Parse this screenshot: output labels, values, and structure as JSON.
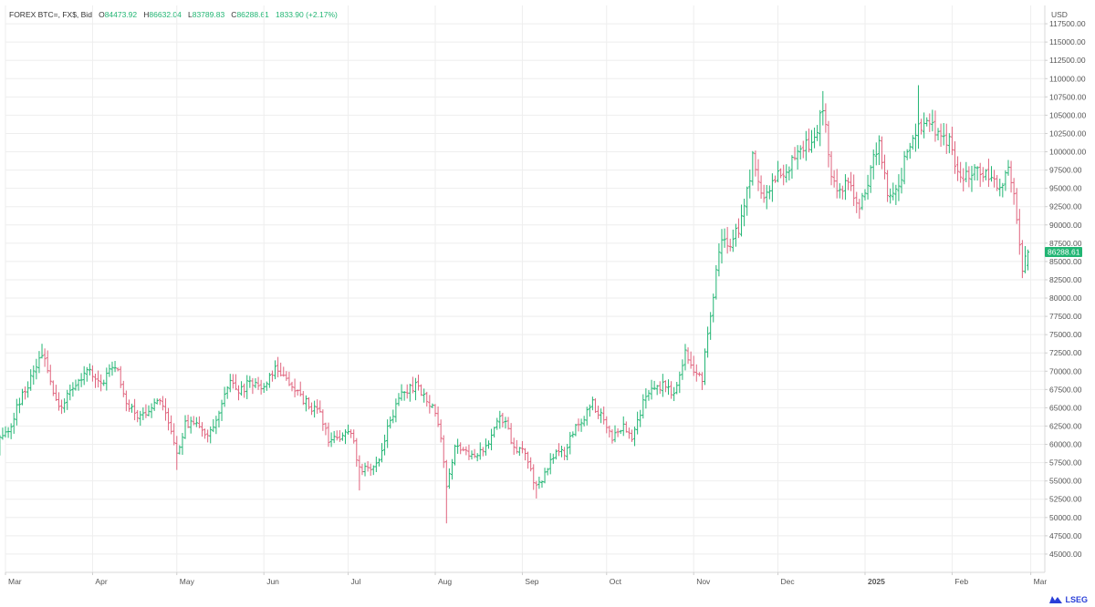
{
  "legend": {
    "symbol": "FOREX BTC=, FX$, Bid",
    "open_label": "O",
    "open": "84473.92",
    "high_label": "H",
    "high": "86632.04",
    "low_label": "L",
    "low": "83789.83",
    "close_label": "C",
    "close": "86288.61",
    "change": "1833.90 (+2.17%)"
  },
  "brand": "LSEG",
  "colors": {
    "up": "#21b573",
    "down": "#e0637d",
    "price_tag": "#21b573",
    "grid": "#eeeeee",
    "axis": "#555555"
  },
  "chart_data": {
    "type": "ohlc",
    "currency_label": "USD",
    "last_price": 86288.61,
    "last_price_label": "86288.61",
    "ylim": [
      42500,
      120000
    ],
    "yticks": [
      45000,
      47500,
      50000,
      52500,
      55000,
      57500,
      60000,
      62500,
      65000,
      67500,
      70000,
      72500,
      75000,
      77500,
      80000,
      82500,
      85000,
      87500,
      90000,
      92500,
      95000,
      97500,
      100000,
      102500,
      105000,
      107500,
      110000,
      112500,
      115000,
      117500
    ],
    "ytick_labels": [
      "45000.00",
      "47500.00",
      "50000.00",
      "52500.00",
      "55000.00",
      "57500.00",
      "60000.00",
      "62500.00",
      "65000.00",
      "67500.00",
      "70000.00",
      "72500.00",
      "75000.00",
      "77500.00",
      "80000.00",
      "82500.00",
      "85000.00",
      "87500.00",
      "90000.00",
      "92500.00",
      "95000.00",
      "97500.00",
      "100000.00",
      "102500.00",
      "105000.00",
      "107500.00",
      "110000.00",
      "112500.00",
      "115000.00",
      "117500.00"
    ],
    "x_range": [
      "2024-03-01",
      "2025-03-06"
    ],
    "xticks": [
      {
        "date": "2024-03-01",
        "label": "Mar",
        "bold": false
      },
      {
        "date": "2024-04-01",
        "label": "Apr",
        "bold": false
      },
      {
        "date": "2024-05-01",
        "label": "May",
        "bold": false
      },
      {
        "date": "2024-06-01",
        "label": "Jun",
        "bold": false
      },
      {
        "date": "2024-07-01",
        "label": "Jul",
        "bold": false
      },
      {
        "date": "2024-08-01",
        "label": "Aug",
        "bold": false
      },
      {
        "date": "2024-09-01",
        "label": "Sep",
        "bold": false
      },
      {
        "date": "2024-10-01",
        "label": "Oct",
        "bold": false
      },
      {
        "date": "2024-11-01",
        "label": "Nov",
        "bold": false
      },
      {
        "date": "2024-12-01",
        "label": "Dec",
        "bold": false
      },
      {
        "date": "2025-01-01",
        "label": "2025",
        "bold": true
      },
      {
        "date": "2025-02-01",
        "label": "Feb",
        "bold": false
      },
      {
        "date": "2025-03-01",
        "label": "Mar",
        "bold": false
      }
    ],
    "start_date": "2024-02-25",
    "end_date": "2025-02-28",
    "anchors": [
      [
        "2024-02-25",
        54000
      ],
      [
        "2024-02-28",
        61000
      ],
      [
        "2024-03-03",
        62500
      ],
      [
        "2024-03-06",
        66000
      ],
      [
        "2024-03-09",
        68000
      ],
      [
        "2024-03-14",
        72500
      ],
      [
        "2024-03-17",
        68500
      ],
      [
        "2024-03-20",
        65000
      ],
      [
        "2024-03-24",
        67000
      ],
      [
        "2024-03-27",
        69000
      ],
      [
        "2024-03-31",
        70000
      ],
      [
        "2024-04-04",
        68000
      ],
      [
        "2024-04-08",
        71000
      ],
      [
        "2024-04-10",
        70000
      ],
      [
        "2024-04-13",
        66000
      ],
      [
        "2024-04-17",
        63500
      ],
      [
        "2024-04-21",
        65000
      ],
      [
        "2024-04-24",
        66500
      ],
      [
        "2024-04-28",
        63500
      ],
      [
        "2024-05-01",
        58500
      ],
      [
        "2024-05-04",
        63000
      ],
      [
        "2024-05-08",
        62500
      ],
      [
        "2024-05-12",
        61000
      ],
      [
        "2024-05-15",
        63500
      ],
      [
        "2024-05-20",
        69000
      ],
      [
        "2024-05-23",
        67000
      ],
      [
        "2024-05-27",
        68500
      ],
      [
        "2024-05-31",
        67500
      ],
      [
        "2024-06-05",
        70500
      ],
      [
        "2024-06-07",
        69500
      ],
      [
        "2024-06-11",
        67500
      ],
      [
        "2024-06-15",
        66000
      ],
      [
        "2024-06-18",
        65000
      ],
      [
        "2024-06-21",
        64000
      ],
      [
        "2024-06-24",
        60500
      ],
      [
        "2024-06-28",
        61000
      ],
      [
        "2024-07-02",
        62000
      ],
      [
        "2024-07-05",
        56500
      ],
      [
        "2024-07-08",
        56500
      ],
      [
        "2024-07-12",
        57500
      ],
      [
        "2024-07-15",
        62000
      ],
      [
        "2024-07-19",
        66500
      ],
      [
        "2024-07-22",
        67500
      ],
      [
        "2024-07-26",
        68000
      ],
      [
        "2024-07-29",
        66000
      ],
      [
        "2024-08-01",
        64500
      ],
      [
        "2024-08-03",
        61000
      ],
      [
        "2024-08-05",
        54000
      ],
      [
        "2024-08-08",
        60000
      ],
      [
        "2024-08-11",
        59000
      ],
      [
        "2024-08-15",
        58000
      ],
      [
        "2024-08-19",
        59500
      ],
      [
        "2024-08-23",
        63500
      ],
      [
        "2024-08-26",
        63000
      ],
      [
        "2024-08-29",
        59500
      ],
      [
        "2024-09-02",
        59000
      ],
      [
        "2024-09-06",
        54000
      ],
      [
        "2024-09-10",
        56500
      ],
      [
        "2024-09-13",
        59500
      ],
      [
        "2024-09-16",
        58500
      ],
      [
        "2024-09-20",
        63000
      ],
      [
        "2024-09-23",
        63500
      ],
      [
        "2024-09-26",
        65500
      ],
      [
        "2024-09-30",
        63500
      ],
      [
        "2024-10-03",
        60500
      ],
      [
        "2024-10-07",
        63000
      ],
      [
        "2024-10-10",
        60500
      ],
      [
        "2024-10-14",
        65500
      ],
      [
        "2024-10-17",
        67500
      ],
      [
        "2024-10-21",
        68000
      ],
      [
        "2024-10-25",
        67000
      ],
      [
        "2024-10-29",
        72500
      ],
      [
        "2024-11-01",
        70000
      ],
      [
        "2024-11-04",
        68500
      ],
      [
        "2024-11-06",
        75500
      ],
      [
        "2024-11-11",
        88500
      ],
      [
        "2024-11-14",
        87000
      ],
      [
        "2024-11-18",
        90500
      ],
      [
        "2024-11-22",
        99000
      ],
      [
        "2024-11-25",
        94000
      ],
      [
        "2024-11-28",
        95500
      ],
      [
        "2024-12-01",
        97000
      ],
      [
        "2024-12-05",
        98000
      ],
      [
        "2024-12-08",
        100000
      ],
      [
        "2024-12-11",
        101000
      ],
      [
        "2024-12-14",
        101500
      ],
      [
        "2024-12-17",
        106500
      ],
      [
        "2024-12-20",
        97000
      ],
      [
        "2024-12-23",
        94500
      ],
      [
        "2024-12-26",
        96000
      ],
      [
        "2024-12-30",
        92500
      ],
      [
        "2025-01-03",
        97500
      ],
      [
        "2025-01-06",
        101500
      ],
      [
        "2025-01-09",
        94000
      ],
      [
        "2025-01-13",
        95000
      ],
      [
        "2025-01-16",
        100500
      ],
      [
        "2025-01-20",
        103000
      ],
      [
        "2025-01-23",
        104500
      ],
      [
        "2025-01-27",
        102000
      ],
      [
        "2025-01-31",
        101500
      ],
      [
        "2025-02-03",
        97500
      ],
      [
        "2025-02-06",
        96500
      ],
      [
        "2025-02-10",
        97500
      ],
      [
        "2025-02-14",
        97000
      ],
      [
        "2025-02-18",
        95500
      ],
      [
        "2025-02-21",
        97500
      ],
      [
        "2025-02-24",
        91500
      ],
      [
        "2025-02-26",
        84000
      ],
      [
        "2025-02-28",
        86288.61
      ]
    ],
    "extreme_bars": [
      {
        "date": "2024-02-25",
        "low": 54500
      },
      {
        "date": "2024-03-14",
        "high": 73750
      },
      {
        "date": "2024-05-01",
        "low": 56500
      },
      {
        "date": "2024-07-05",
        "low": 53700
      },
      {
        "date": "2024-08-05",
        "low": 49200
      },
      {
        "date": "2024-09-06",
        "low": 52600
      },
      {
        "date": "2024-12-17",
        "high": 108300
      },
      {
        "date": "2025-01-20",
        "high": 109100
      },
      {
        "date": "2025-02-28",
        "open": 84473.92,
        "high": 86632.04,
        "low": 83789.83,
        "close": 86288.61
      }
    ]
  }
}
